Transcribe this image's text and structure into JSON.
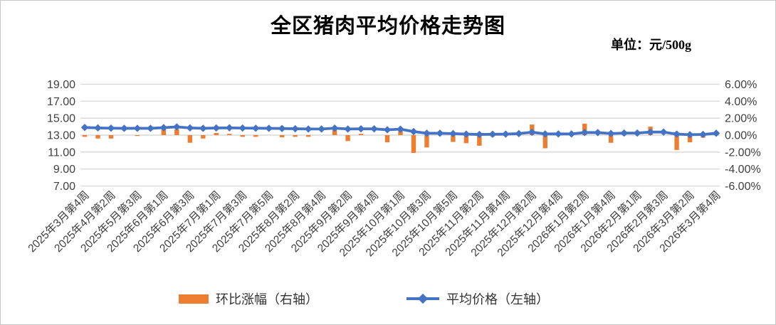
{
  "title": "全区猪肉平均价格走势图",
  "unit_label": "单位：元/500g",
  "legend": {
    "bar_label": "环比涨幅（右轴）",
    "line_label": "平均价格（左轴）"
  },
  "colors": {
    "bar": "#ED7D31",
    "line": "#4472C4",
    "grid": "#D9D9D9",
    "axis_text": "#404040"
  },
  "chart_data": {
    "type": "bar+line combo (bar on right %, line on left price)",
    "title": "全区猪肉平均价格走势图",
    "unit": "元/500g",
    "grid": true,
    "legend_position": "bottom",
    "ylim_left": [
      7,
      19
    ],
    "ylim_right": [
      -6,
      6
    ],
    "y_ticks_left": [
      "19.00",
      "17.00",
      "15.00",
      "13.00",
      "11.00",
      "9.00",
      "7.00"
    ],
    "y_ticks_right": [
      "6.00%",
      "4.00%",
      "2.00%",
      "0.00%",
      "-2.00%",
      "-4.00%",
      "-6.00%"
    ],
    "x_label_note": "weekly categories; every other label shown, rotated 45°; empty string = unlabeled week",
    "categories": [
      "2025年3月第4周",
      "",
      "2025年4月第2周",
      "",
      "2025年5月第3周",
      "",
      "2025年6月第1周",
      "",
      "2025年6月第3周",
      "",
      "2025年7月第1周",
      "",
      "2025年7月第3周",
      "",
      "2025年7月第5周",
      "",
      "2025年8月第2周",
      "",
      "2025年8月第4周",
      "",
      "2025年9月第2周",
      "",
      "2025年9月第4周",
      "",
      "2025年10月第1周",
      "",
      "2025年10月第3周",
      "",
      "2025年10月第5周",
      "",
      "2025年11月第2周",
      "",
      "2025年11月第4周",
      "",
      "2025年12月第2周",
      "",
      "2025年12月第4周",
      "",
      "2026年1月第2周",
      "",
      "2026年1月第4周",
      "",
      "2026年2月第1周",
      "",
      "2026年2月第3周",
      "",
      "2026年3月第2周",
      "",
      "2026年3月第4周"
    ],
    "series": [
      {
        "name": "平均价格（左轴）",
        "type": "line",
        "axis": "left",
        "color": "#4472C4",
        "values": [
          13.9,
          13.85,
          13.82,
          13.8,
          13.8,
          13.8,
          13.88,
          13.97,
          13.85,
          13.8,
          13.84,
          13.86,
          13.83,
          13.81,
          13.8,
          13.78,
          13.75,
          13.72,
          13.72,
          13.82,
          13.72,
          13.74,
          13.74,
          13.63,
          13.7,
          13.42,
          13.22,
          13.22,
          13.18,
          13.12,
          13.08,
          13.1,
          13.12,
          13.18,
          13.34,
          13.14,
          13.14,
          13.14,
          13.31,
          13.3,
          13.19,
          13.24,
          13.24,
          13.36,
          13.36,
          13.12,
          13.05,
          13.08,
          13.22
        ]
      },
      {
        "name": "环比涨幅（右轴）",
        "type": "bar",
        "axis": "right",
        "color": "#ED7D31",
        "values": [
          -0.2,
          -0.4,
          -0.4,
          0,
          -0.1,
          0,
          0.8,
          0.7,
          -0.9,
          -0.4,
          0.25,
          0.15,
          -0.2,
          -0.2,
          0,
          -0.25,
          -0.2,
          -0.2,
          0,
          0.7,
          -0.7,
          0.15,
          0,
          -0.85,
          0.55,
          -2.1,
          -1.45,
          0,
          -0.8,
          -0.95,
          -1.25,
          -0.15,
          0.1,
          0,
          1.25,
          -1.55,
          0,
          0,
          1.35,
          0,
          -0.9,
          0.4,
          0,
          1.0,
          0,
          -1.75,
          -0.85,
          -0.3,
          0.15
        ]
      }
    ]
  }
}
